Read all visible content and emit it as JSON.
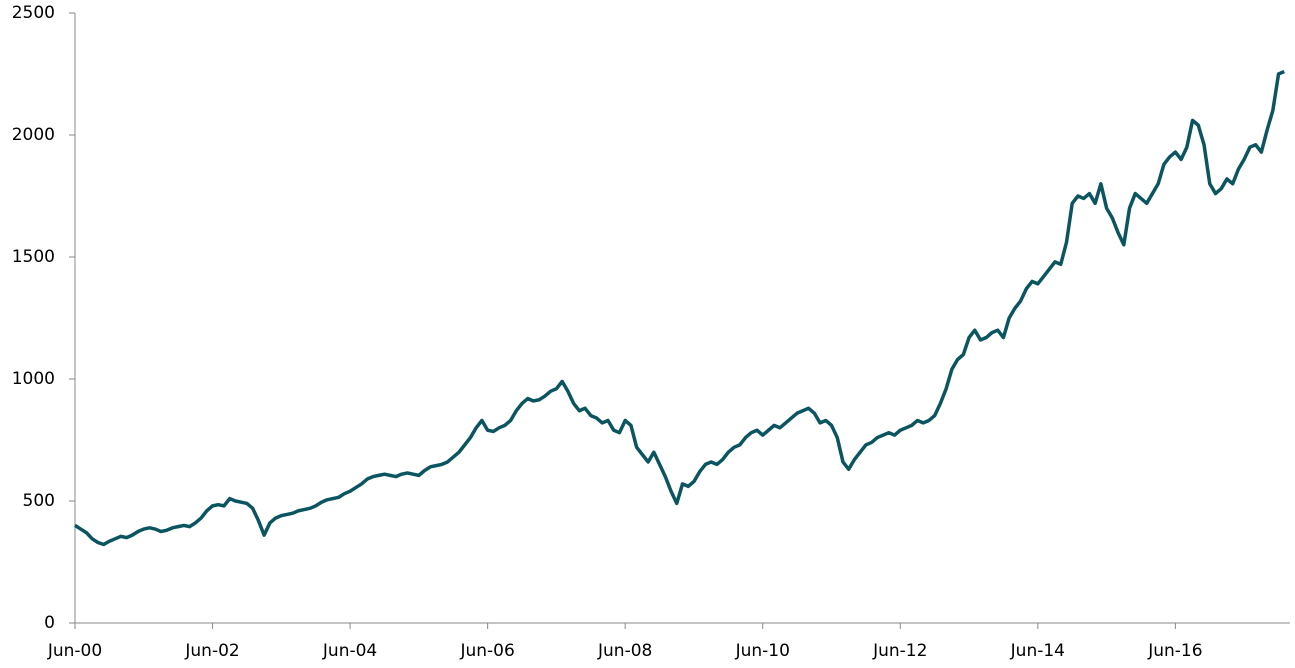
{
  "chart_data": {
    "type": "line",
    "x": [
      "2000-06",
      "2000-07",
      "2000-08",
      "2000-09",
      "2000-10",
      "2000-11",
      "2000-12",
      "2001-01",
      "2001-02",
      "2001-03",
      "2001-04",
      "2001-05",
      "2001-06",
      "2001-07",
      "2001-08",
      "2001-09",
      "2001-10",
      "2001-11",
      "2001-12",
      "2002-01",
      "2002-02",
      "2002-03",
      "2002-04",
      "2002-05",
      "2002-06",
      "2002-07",
      "2002-08",
      "2002-09",
      "2002-10",
      "2002-11",
      "2002-12",
      "2003-01",
      "2003-02",
      "2003-03",
      "2003-04",
      "2003-05",
      "2003-06",
      "2003-07",
      "2003-08",
      "2003-09",
      "2003-10",
      "2003-11",
      "2003-12",
      "2004-01",
      "2004-02",
      "2004-03",
      "2004-04",
      "2004-05",
      "2004-06",
      "2004-07",
      "2004-08",
      "2004-09",
      "2004-10",
      "2004-11",
      "2004-12",
      "2005-01",
      "2005-02",
      "2005-03",
      "2005-04",
      "2005-05",
      "2005-06",
      "2005-07",
      "2005-08",
      "2005-09",
      "2005-10",
      "2005-11",
      "2005-12",
      "2006-01",
      "2006-02",
      "2006-03",
      "2006-04",
      "2006-05",
      "2006-06",
      "2006-07",
      "2006-08",
      "2006-09",
      "2006-10",
      "2006-11",
      "2006-12",
      "2007-01",
      "2007-02",
      "2007-03",
      "2007-04",
      "2007-05",
      "2007-06",
      "2007-07",
      "2007-08",
      "2007-09",
      "2007-10",
      "2007-11",
      "2007-12",
      "2008-01",
      "2008-02",
      "2008-03",
      "2008-04",
      "2008-05",
      "2008-06",
      "2008-07",
      "2008-08",
      "2008-09",
      "2008-10",
      "2008-11",
      "2008-12",
      "2009-01",
      "2009-02",
      "2009-03",
      "2009-04",
      "2009-05",
      "2009-06",
      "2009-07",
      "2009-08",
      "2009-09",
      "2009-10",
      "2009-11",
      "2009-12",
      "2010-01",
      "2010-02",
      "2010-03",
      "2010-04",
      "2010-05",
      "2010-06",
      "2010-07",
      "2010-08",
      "2010-09",
      "2010-10",
      "2010-11",
      "2010-12",
      "2011-01",
      "2011-02",
      "2011-03",
      "2011-04",
      "2011-05",
      "2011-06",
      "2011-07",
      "2011-08",
      "2011-09",
      "2011-10",
      "2011-11",
      "2011-12",
      "2012-01",
      "2012-02",
      "2012-03",
      "2012-04",
      "2012-05",
      "2012-06",
      "2012-07",
      "2012-08",
      "2012-09",
      "2012-10",
      "2012-11",
      "2012-12",
      "2013-01",
      "2013-02",
      "2013-03",
      "2013-04",
      "2013-05",
      "2013-06",
      "2013-07",
      "2013-08",
      "2013-09",
      "2013-10",
      "2013-11",
      "2013-12",
      "2014-01",
      "2014-02",
      "2014-03",
      "2014-04",
      "2014-05",
      "2014-06",
      "2014-07",
      "2014-08",
      "2014-09",
      "2014-10",
      "2014-11",
      "2014-12",
      "2015-01",
      "2015-02",
      "2015-03",
      "2015-04",
      "2015-05",
      "2015-06",
      "2015-07",
      "2015-08",
      "2015-09",
      "2015-10",
      "2015-11",
      "2015-12",
      "2016-01",
      "2016-02",
      "2016-03",
      "2016-04",
      "2016-05",
      "2016-06",
      "2016-07",
      "2016-08",
      "2016-09",
      "2016-10",
      "2016-11",
      "2016-12",
      "2017-01",
      "2017-02",
      "2017-03",
      "2017-04",
      "2017-05",
      "2017-06",
      "2017-07",
      "2017-08",
      "2017-09",
      "2017-10",
      "2017-11",
      "2017-12",
      "2018-01"
    ],
    "series": [
      {
        "color": "#0b5561",
        "values": [
          400,
          385,
          370,
          345,
          330,
          322,
          335,
          345,
          355,
          350,
          360,
          375,
          385,
          390,
          385,
          375,
          380,
          390,
          395,
          400,
          395,
          410,
          430,
          460,
          480,
          485,
          480,
          510,
          500,
          495,
          490,
          470,
          420,
          360,
          410,
          430,
          440,
          445,
          450,
          460,
          465,
          470,
          480,
          495,
          505,
          510,
          515,
          530,
          540,
          555,
          570,
          590,
          600,
          605,
          610,
          605,
          600,
          610,
          615,
          610,
          605,
          625,
          640,
          645,
          650,
          660,
          680,
          700,
          730,
          760,
          800,
          830,
          790,
          785,
          800,
          810,
          830,
          870,
          900,
          920,
          910,
          915,
          930,
          950,
          960,
          990,
          950,
          900,
          870,
          880,
          850,
          840,
          820,
          830,
          790,
          780,
          830,
          810,
          720,
          690,
          660,
          700,
          650,
          600,
          540,
          490,
          570,
          560,
          580,
          620,
          650,
          660,
          650,
          670,
          700,
          720,
          730,
          760,
          780,
          790,
          770,
          790,
          810,
          800,
          820,
          840,
          860,
          870,
          880,
          860,
          820,
          830,
          810,
          760,
          660,
          630,
          670,
          700,
          730,
          740,
          760,
          770,
          780,
          770,
          790,
          800,
          810,
          830,
          820,
          830,
          850,
          900,
          960,
          1040,
          1080,
          1100,
          1170,
          1200,
          1160,
          1170,
          1190,
          1200,
          1170,
          1250,
          1290,
          1320,
          1370,
          1400,
          1390,
          1420,
          1450,
          1480,
          1470,
          1560,
          1720,
          1750,
          1740,
          1760,
          1720,
          1800,
          1700,
          1660,
          1600,
          1550,
          1700,
          1760,
          1740,
          1720,
          1760,
          1800,
          1880,
          1910,
          1930,
          1900,
          1950,
          2060,
          2040,
          1960,
          1800,
          1760,
          1780,
          1820,
          1800,
          1860,
          1900,
          1950,
          1960,
          1930,
          2020,
          2100,
          2250,
          2260
        ]
      }
    ],
    "xlim": [
      "2000-06",
      "2018-02"
    ],
    "xticks": [
      {
        "value": "2000-06",
        "label": "Jun-00"
      },
      {
        "value": "2002-06",
        "label": "Jun-02"
      },
      {
        "value": "2004-06",
        "label": "Jun-04"
      },
      {
        "value": "2006-06",
        "label": "Jun-06"
      },
      {
        "value": "2008-06",
        "label": "Jun-08"
      },
      {
        "value": "2010-06",
        "label": "Jun-10"
      },
      {
        "value": "2012-06",
        "label": "Jun-12"
      },
      {
        "value": "2014-06",
        "label": "Jun-14"
      },
      {
        "value": "2016-06",
        "label": "Jun-16"
      }
    ],
    "ylim": [
      0,
      2500
    ],
    "yticks": [
      0,
      500,
      1000,
      1500,
      2000,
      2500
    ],
    "grid": false
  }
}
